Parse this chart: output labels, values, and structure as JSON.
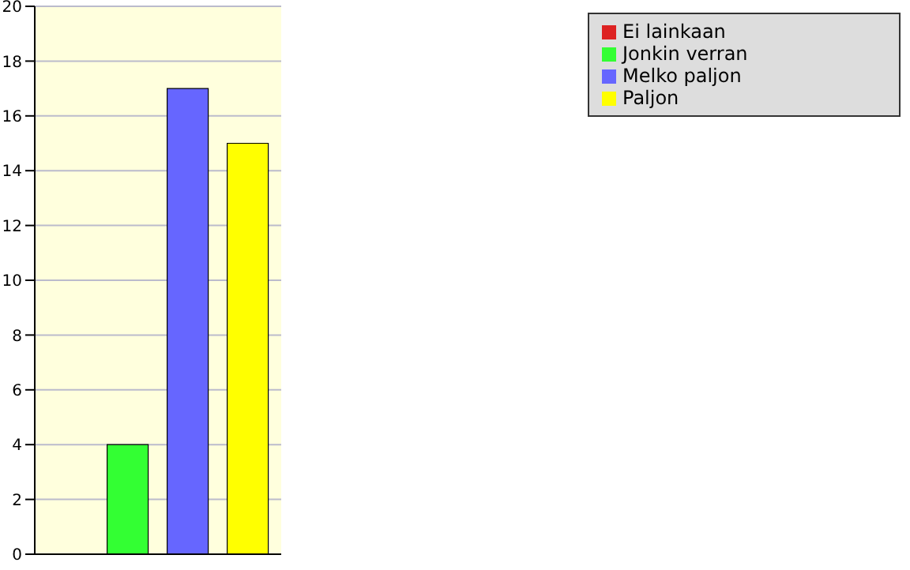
{
  "chart_data": {
    "type": "bar",
    "categories": [
      null
    ],
    "series": [
      {
        "name": "Ei lainkaan",
        "color": "#dd2222",
        "values": [
          0
        ]
      },
      {
        "name": "Jonkin verran",
        "color": "#33ff33",
        "values": [
          4
        ]
      },
      {
        "name": "Melko paljon",
        "color": "#6666ff",
        "values": [
          17
        ]
      },
      {
        "name": "Paljon",
        "color": "#ffff00",
        "values": [
          15
        ]
      }
    ],
    "ylim": [
      0,
      20
    ],
    "yticks": [
      0,
      2,
      4,
      6,
      8,
      10,
      12,
      14,
      16,
      18,
      20
    ],
    "grid": "y",
    "legend": "top right"
  }
}
